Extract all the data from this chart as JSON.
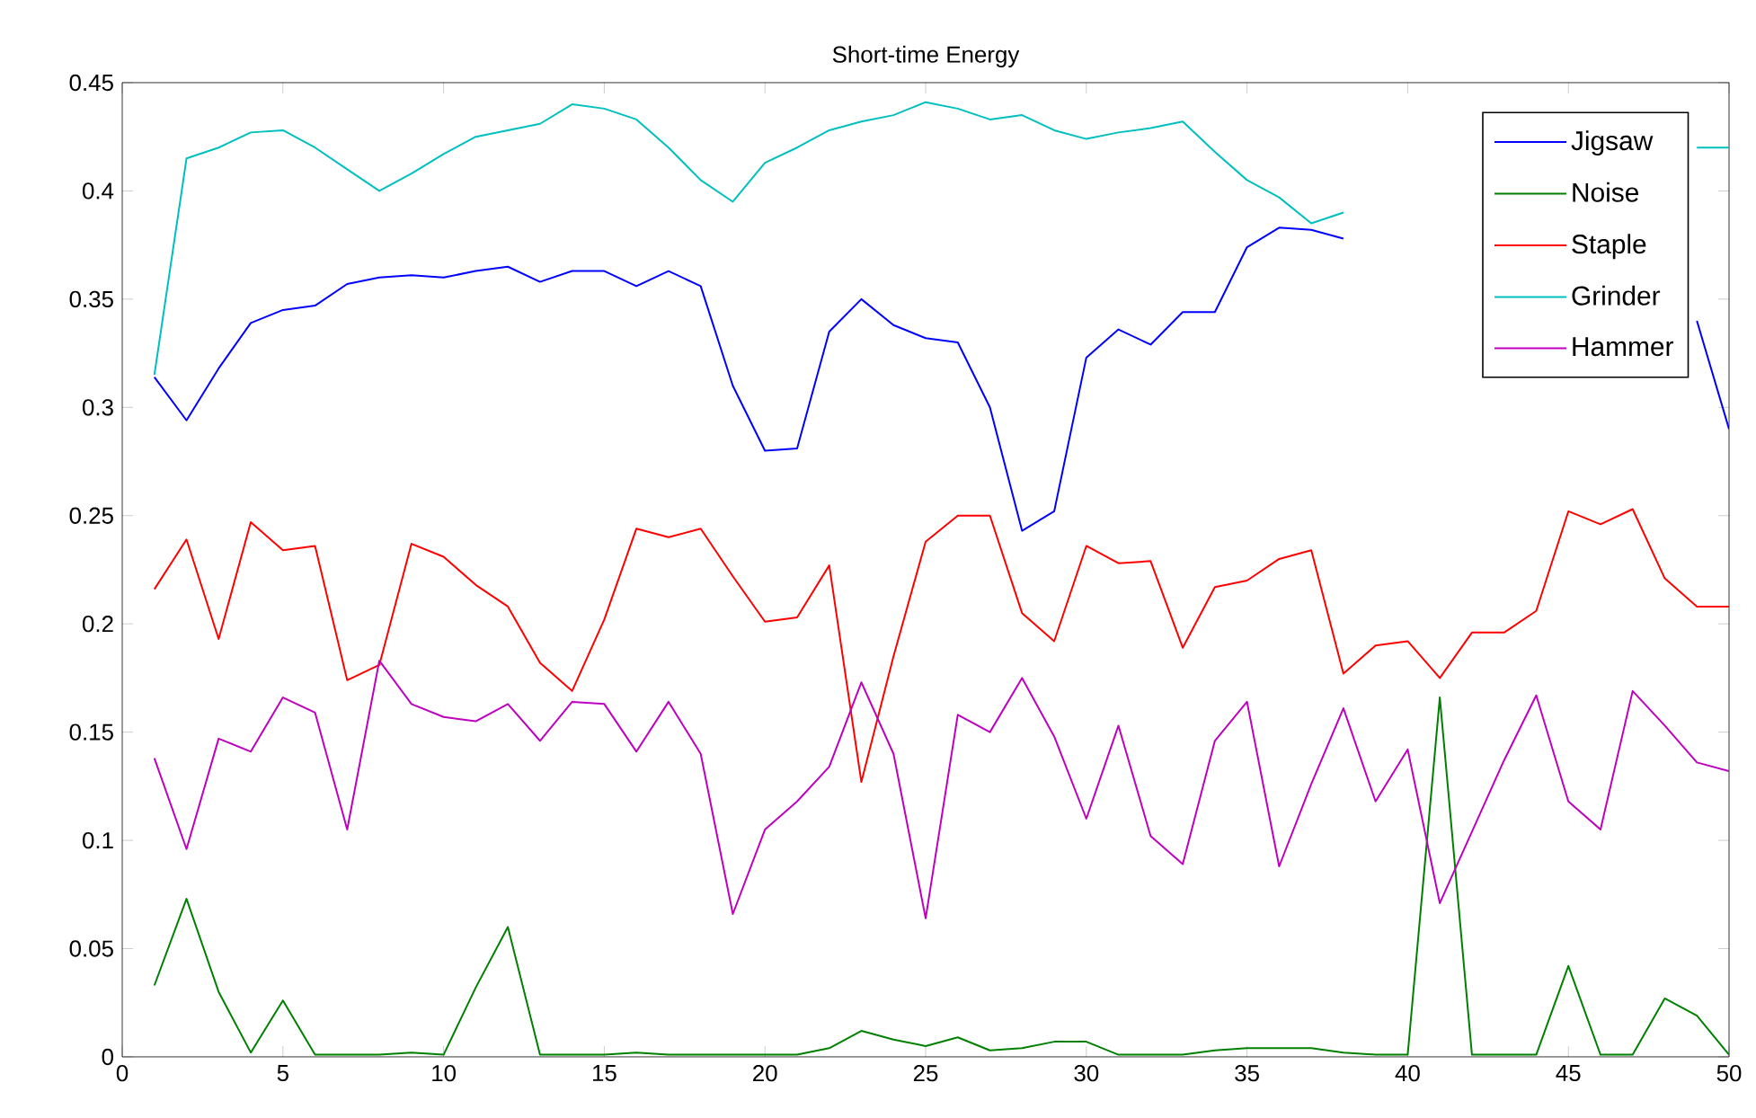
{
  "chart_data": {
    "type": "line",
    "title": "Short-time Energy",
    "x": [
      1,
      2,
      3,
      4,
      5,
      6,
      7,
      8,
      9,
      10,
      11,
      12,
      13,
      14,
      15,
      16,
      17,
      18,
      19,
      20,
      21,
      22,
      23,
      24,
      25,
      26,
      27,
      28,
      29,
      30,
      31,
      32,
      33,
      34,
      35,
      36,
      37,
      38,
      39,
      40,
      41,
      42,
      43,
      44,
      45,
      46,
      47,
      48,
      49,
      50
    ],
    "series": [
      {
        "name": "Jigsaw",
        "color": "#0000ff",
        "values": [
          0.314,
          0.294,
          0.318,
          0.339,
          0.345,
          0.347,
          0.357,
          0.36,
          0.361,
          0.36,
          0.363,
          0.365,
          0.358,
          0.363,
          0.363,
          0.356,
          0.363,
          0.356,
          0.31,
          0.28,
          0.281,
          0.335,
          0.35,
          0.338,
          0.332,
          0.33,
          0.3,
          0.243,
          0.252,
          0.323,
          0.336,
          0.329,
          0.344,
          0.344,
          0.374,
          0.383,
          0.382,
          0.378,
          null,
          null,
          null,
          null,
          null,
          null,
          null,
          null,
          null,
          null,
          0.34,
          0.29
        ]
      },
      {
        "name": "Noise",
        "color": "#008000",
        "values": [
          0.033,
          0.073,
          0.03,
          0.002,
          0.026,
          0.001,
          0.001,
          0.001,
          0.002,
          0.001,
          0.032,
          0.06,
          0.001,
          0.001,
          0.001,
          0.002,
          0.001,
          0.001,
          0.001,
          0.001,
          0.001,
          0.004,
          0.012,
          0.008,
          0.005,
          0.009,
          0.003,
          0.004,
          0.007,
          0.007,
          0.001,
          0.001,
          0.001,
          0.003,
          0.004,
          0.004,
          0.004,
          0.002,
          0.001,
          0.001,
          0.166,
          0.001,
          0.001,
          0.001,
          0.042,
          0.001,
          0.001,
          0.027,
          0.019,
          0.001
        ]
      },
      {
        "name": "Staple",
        "color": "#ff0000",
        "values": [
          0.216,
          0.239,
          0.193,
          0.247,
          0.234,
          0.236,
          0.174,
          0.181,
          0.237,
          0.231,
          0.218,
          0.208,
          0.182,
          0.169,
          0.202,
          0.244,
          0.24,
          0.244,
          0.222,
          0.201,
          0.203,
          0.227,
          0.127,
          0.185,
          0.238,
          0.25,
          0.25,
          0.205,
          0.192,
          0.236,
          0.228,
          0.229,
          0.189,
          0.217,
          0.22,
          0.23,
          0.234,
          0.177,
          0.19,
          0.192,
          0.175,
          0.196,
          0.196,
          0.206,
          0.252,
          0.246,
          0.253,
          0.221,
          0.208,
          0.208
        ]
      },
      {
        "name": "Grinder",
        "color": "#00bfbf",
        "values": [
          0.315,
          0.415,
          0.42,
          0.427,
          0.428,
          0.42,
          0.41,
          0.4,
          0.408,
          0.417,
          0.425,
          0.428,
          0.431,
          0.44,
          0.438,
          0.433,
          0.42,
          0.405,
          0.395,
          0.413,
          0.42,
          0.428,
          0.432,
          0.435,
          0.441,
          0.438,
          0.433,
          0.435,
          0.428,
          0.424,
          0.427,
          0.429,
          0.432,
          0.418,
          0.405,
          0.397,
          0.385,
          0.39,
          null,
          null,
          null,
          null,
          null,
          null,
          null,
          null,
          null,
          null,
          0.42,
          0.42
        ]
      },
      {
        "name": "Hammer",
        "color": "#bf00bf",
        "values": [
          0.138,
          0.096,
          0.147,
          0.141,
          0.166,
          0.159,
          0.105,
          0.183,
          0.163,
          0.157,
          0.155,
          0.163,
          0.146,
          0.164,
          0.163,
          0.141,
          0.164,
          0.14,
          0.066,
          0.105,
          0.118,
          0.134,
          0.173,
          0.14,
          0.064,
          0.158,
          0.15,
          0.175,
          0.148,
          0.11,
          0.153,
          0.102,
          0.089,
          0.146,
          0.164,
          0.088,
          0.126,
          0.161,
          0.118,
          0.142,
          0.071,
          0.104,
          0.137,
          0.167,
          0.118,
          0.105,
          0.169,
          0.153,
          0.136,
          0.132
        ]
      }
    ],
    "xlim": [
      0,
      50
    ],
    "xticks": [
      0,
      5,
      10,
      15,
      20,
      25,
      30,
      35,
      40,
      45,
      50
    ],
    "ylim": [
      0,
      0.45
    ],
    "yticks": [
      0,
      0.05,
      0.1,
      0.15,
      0.2,
      0.25,
      0.3,
      0.35,
      0.4,
      0.45
    ],
    "legend": "top right",
    "grid": false
  }
}
